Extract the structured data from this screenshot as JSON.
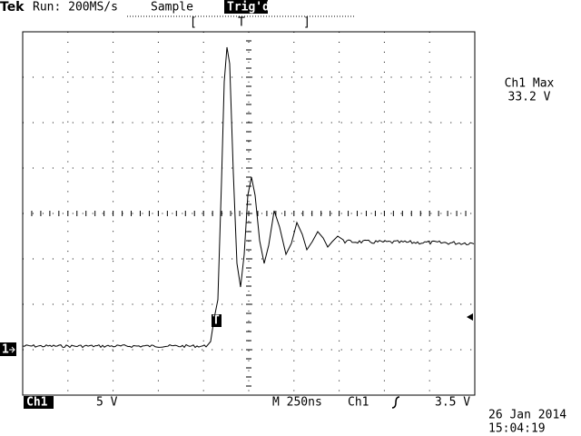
{
  "header": {
    "brand": "Tek",
    "run": "Run: 200MS/s",
    "mode": "Sample",
    "trigger_status": "Trig'd",
    "trigger_position": "T"
  },
  "measurement": {
    "label": "Ch1 Max",
    "value": "33.2 V"
  },
  "footer": {
    "channel": "Ch1",
    "volts_per_div": "5 V",
    "timebase": "M 250ns",
    "trigger_source": "Ch1",
    "trigger_level": "3.5 V"
  },
  "timestamp": {
    "date": "26 Jan 2014",
    "time": "15:04:19"
  },
  "markers": {
    "channel_ground": "1",
    "trigger_point": "T"
  }
}
